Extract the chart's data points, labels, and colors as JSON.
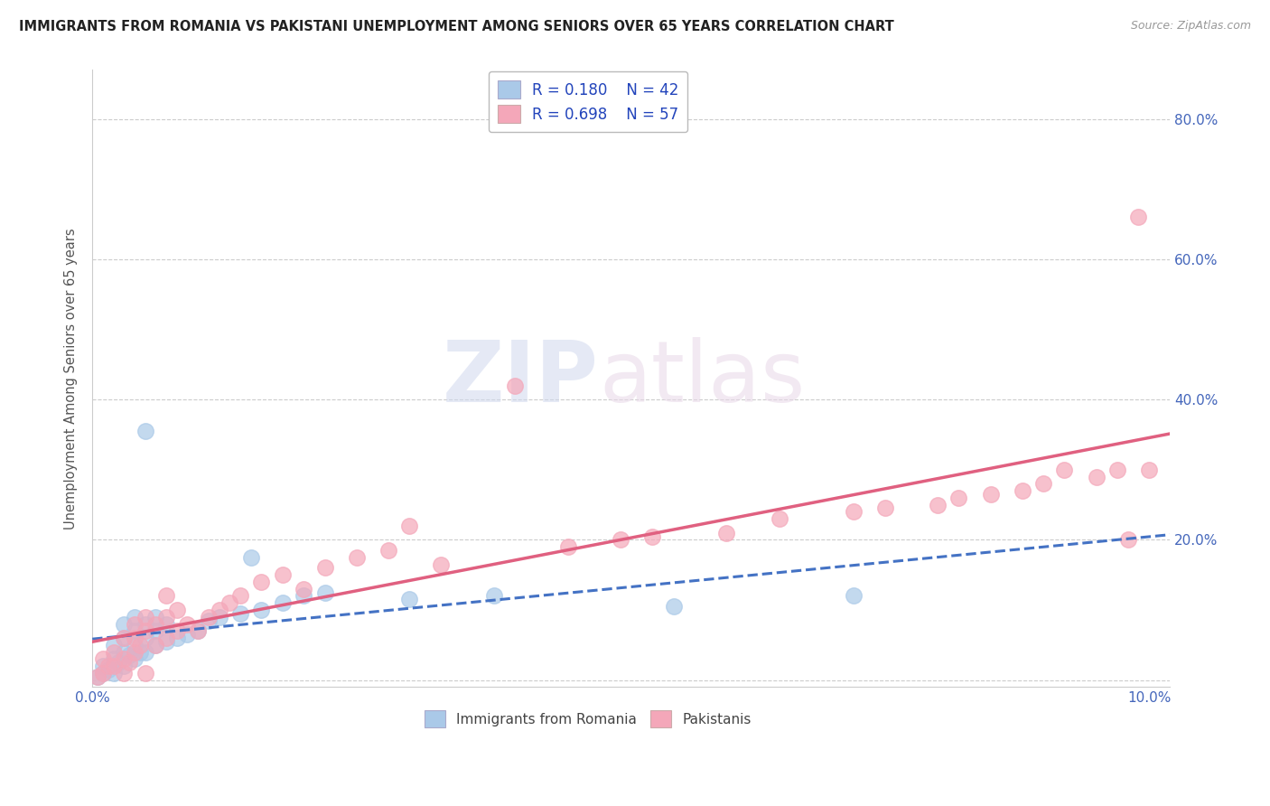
{
  "title": "IMMIGRANTS FROM ROMANIA VS PAKISTANI UNEMPLOYMENT AMONG SENIORS OVER 65 YEARS CORRELATION CHART",
  "source": "Source: ZipAtlas.com",
  "ylabel": "Unemployment Among Seniors over 65 years",
  "romania_R": 0.18,
  "romania_N": 42,
  "pakistan_R": 0.698,
  "pakistan_N": 57,
  "romania_color": "#aac9e8",
  "pakistan_color": "#f4a7b9",
  "romania_line_color": "#4472c4",
  "pakistan_line_color": "#e06080",
  "background_color": "#ffffff",
  "watermark_zip": "ZIP",
  "watermark_atlas": "atlas",
  "xlim": [
    0.0,
    0.102
  ],
  "ylim": [
    -0.01,
    0.87
  ],
  "x_ticks": [
    0.0,
    0.02,
    0.04,
    0.06,
    0.08,
    0.1
  ],
  "x_tick_labels": [
    "0.0%",
    "",
    "",
    "",
    "",
    "10.0%"
  ],
  "y_ticks": [
    0.0,
    0.2,
    0.4,
    0.6,
    0.8
  ],
  "y_tick_labels_right": [
    "",
    "20.0%",
    "40.0%",
    "60.0%",
    "80.0%"
  ],
  "romania_x": [
    0.0005,
    0.001,
    0.001,
    0.0015,
    0.002,
    0.002,
    0.002,
    0.0025,
    0.003,
    0.003,
    0.003,
    0.003,
    0.0035,
    0.004,
    0.004,
    0.004,
    0.004,
    0.0045,
    0.005,
    0.005,
    0.005,
    0.005,
    0.006,
    0.006,
    0.006,
    0.007,
    0.007,
    0.008,
    0.009,
    0.01,
    0.011,
    0.012,
    0.014,
    0.015,
    0.016,
    0.018,
    0.02,
    0.022,
    0.03,
    0.038,
    0.055,
    0.072
  ],
  "romania_y": [
    0.005,
    0.01,
    0.02,
    0.015,
    0.01,
    0.03,
    0.05,
    0.025,
    0.02,
    0.04,
    0.06,
    0.08,
    0.035,
    0.03,
    0.05,
    0.07,
    0.09,
    0.04,
    0.04,
    0.06,
    0.08,
    0.355,
    0.05,
    0.07,
    0.09,
    0.055,
    0.08,
    0.06,
    0.065,
    0.07,
    0.085,
    0.09,
    0.095,
    0.175,
    0.1,
    0.11,
    0.12,
    0.125,
    0.115,
    0.12,
    0.105,
    0.12
  ],
  "pakistan_x": [
    0.0005,
    0.001,
    0.001,
    0.0015,
    0.002,
    0.002,
    0.003,
    0.003,
    0.003,
    0.0035,
    0.004,
    0.004,
    0.004,
    0.0045,
    0.005,
    0.005,
    0.005,
    0.006,
    0.006,
    0.007,
    0.007,
    0.007,
    0.008,
    0.008,
    0.009,
    0.01,
    0.011,
    0.012,
    0.013,
    0.014,
    0.016,
    0.018,
    0.02,
    0.022,
    0.025,
    0.028,
    0.03,
    0.033,
    0.04,
    0.045,
    0.05,
    0.053,
    0.06,
    0.065,
    0.072,
    0.075,
    0.08,
    0.082,
    0.085,
    0.088,
    0.09,
    0.092,
    0.095,
    0.097,
    0.098,
    0.099,
    0.1
  ],
  "pakistan_y": [
    0.005,
    0.01,
    0.03,
    0.02,
    0.02,
    0.04,
    0.01,
    0.03,
    0.06,
    0.025,
    0.04,
    0.06,
    0.08,
    0.05,
    0.01,
    0.07,
    0.09,
    0.05,
    0.08,
    0.06,
    0.09,
    0.12,
    0.07,
    0.1,
    0.08,
    0.07,
    0.09,
    0.1,
    0.11,
    0.12,
    0.14,
    0.15,
    0.13,
    0.16,
    0.175,
    0.185,
    0.22,
    0.165,
    0.42,
    0.19,
    0.2,
    0.205,
    0.21,
    0.23,
    0.24,
    0.245,
    0.25,
    0.26,
    0.265,
    0.27,
    0.28,
    0.3,
    0.29,
    0.3,
    0.2,
    0.66,
    0.3
  ]
}
